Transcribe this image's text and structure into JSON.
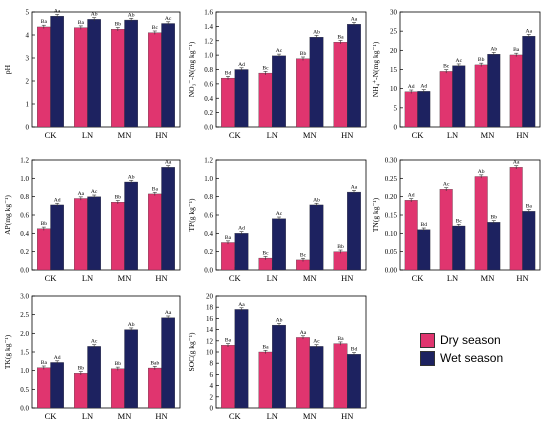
{
  "colors": {
    "dry": "#e0356f",
    "wet": "#1d2260",
    "axis": "#000000",
    "label_text": "#000000"
  },
  "legend": [
    {
      "label": "Dry season",
      "color": "#e0356f"
    },
    {
      "label": "Wet season",
      "color": "#1d2260"
    }
  ],
  "chart_data": [
    {
      "type": "bar",
      "ylabel": "pH",
      "categories": [
        "CK",
        "LN",
        "MN",
        "HN"
      ],
      "ylim": [
        0,
        5
      ],
      "yticks": [
        0,
        1,
        2,
        3,
        4,
        5
      ],
      "yticklabels": [
        "0",
        "1",
        "2",
        "3",
        "4",
        "5"
      ],
      "series": [
        {
          "name": "Dry season",
          "values": [
            4.35,
            4.32,
            4.25,
            4.1
          ],
          "labels": [
            "Ba",
            "Ba",
            "Bb",
            "Bc"
          ]
        },
        {
          "name": "Wet season",
          "values": [
            4.82,
            4.68,
            4.65,
            4.5
          ],
          "labels": [
            "Aa",
            "Ab",
            "Ab",
            "Ac"
          ]
        }
      ]
    },
    {
      "type": "bar",
      "ylabel": "NO₃⁻-N(mg kg⁻¹)",
      "categories": [
        "CK",
        "LN",
        "MN",
        "HN"
      ],
      "ylim": [
        0,
        1.6
      ],
      "yticks": [
        0,
        0.2,
        0.4,
        0.6,
        0.8,
        1.0,
        1.2,
        1.4,
        1.6
      ],
      "yticklabels": [
        "0.0",
        "0.2",
        "0.4",
        "0.6",
        "0.8",
        "1.0",
        "1.2",
        "1.4",
        "1.6"
      ],
      "series": [
        {
          "name": "Dry season",
          "values": [
            0.68,
            0.75,
            0.95,
            1.18
          ],
          "labels": [
            "Bd",
            "Bc",
            "Bb",
            "Ba"
          ]
        },
        {
          "name": "Wet season",
          "values": [
            0.8,
            0.99,
            1.25,
            1.43
          ],
          "labels": [
            "Ad",
            "Ac",
            "Ab",
            "Aa"
          ]
        }
      ]
    },
    {
      "type": "bar",
      "ylabel": "NH₄⁺-N(mg kg⁻¹)",
      "categories": [
        "CK",
        "LN",
        "MN",
        "HN"
      ],
      "ylim": [
        0,
        30
      ],
      "yticks": [
        0,
        5,
        10,
        15,
        20,
        25,
        30
      ],
      "yticklabels": [
        "0",
        "5",
        "10",
        "15",
        "20",
        "25",
        "30"
      ],
      "series": [
        {
          "name": "Dry season",
          "values": [
            9.2,
            14.5,
            16.2,
            18.8
          ],
          "labels": [
            "Ad",
            "Bc",
            "Bb",
            "Ba"
          ]
        },
        {
          "name": "Wet season",
          "values": [
            9.3,
            16.0,
            19.0,
            23.7
          ],
          "labels": [
            "Ad",
            "Ac",
            "Ab",
            "Aa"
          ]
        }
      ]
    },
    {
      "type": "bar",
      "ylabel": "AP(mg kg⁻¹)",
      "categories": [
        "CK",
        "LN",
        "MN",
        "HN"
      ],
      "ylim": [
        0,
        1.2
      ],
      "yticks": [
        0,
        0.2,
        0.4,
        0.6,
        0.8,
        1.0,
        1.2
      ],
      "yticklabels": [
        "0.0",
        "0.2",
        "0.4",
        "0.6",
        "0.8",
        "1.0",
        "1.2"
      ],
      "series": [
        {
          "name": "Dry season",
          "values": [
            0.45,
            0.78,
            0.74,
            0.83
          ],
          "labels": [
            "Bb",
            "Aa",
            "Bb",
            "Ba"
          ]
        },
        {
          "name": "Wet season",
          "values": [
            0.71,
            0.8,
            0.96,
            1.12
          ],
          "labels": [
            "Ad",
            "Ac",
            "Ab",
            "Aa"
          ]
        }
      ]
    },
    {
      "type": "bar",
      "ylabel": "TP(g kg⁻¹)",
      "categories": [
        "CK",
        "LN",
        "MN",
        "HN"
      ],
      "ylim": [
        0,
        1.2
      ],
      "yticks": [
        0,
        0.2,
        0.4,
        0.6,
        0.8,
        1.0,
        1.2
      ],
      "yticklabels": [
        "0.0",
        "0.2",
        "0.4",
        "0.6",
        "0.8",
        "1.0",
        "1.2"
      ],
      "series": [
        {
          "name": "Dry season",
          "values": [
            0.3,
            0.13,
            0.11,
            0.2
          ],
          "labels": [
            "Ba",
            "Bc",
            "Bc",
            "Bb"
          ]
        },
        {
          "name": "Wet season",
          "values": [
            0.4,
            0.56,
            0.71,
            0.85
          ],
          "labels": [
            "Ad",
            "Ac",
            "Ab",
            "Aa"
          ]
        }
      ]
    },
    {
      "type": "bar",
      "ylabel": "TN(g kg⁻¹)",
      "categories": [
        "CK",
        "LN",
        "MN",
        "HN"
      ],
      "ylim": [
        0,
        0.3
      ],
      "yticks": [
        0,
        0.05,
        0.1,
        0.15,
        0.2,
        0.25,
        0.3
      ],
      "yticklabels": [
        "0.00",
        "0.05",
        "0.10",
        "0.15",
        "0.20",
        "0.25",
        "0.30"
      ],
      "series": [
        {
          "name": "Dry season",
          "values": [
            0.19,
            0.22,
            0.255,
            0.28
          ],
          "labels": [
            "Ad",
            "Ac",
            "Ab",
            "Aa"
          ]
        },
        {
          "name": "Wet season",
          "values": [
            0.11,
            0.12,
            0.13,
            0.16
          ],
          "labels": [
            "Bd",
            "Bc",
            "Bb",
            "Ba"
          ]
        }
      ]
    },
    {
      "type": "bar",
      "ylabel": "TK(g kg⁻¹)",
      "categories": [
        "CK",
        "LN",
        "MN",
        "HN"
      ],
      "ylim": [
        0,
        3.0
      ],
      "yticks": [
        0,
        0.5,
        1.0,
        1.5,
        2.0,
        2.5,
        3.0
      ],
      "yticklabels": [
        "0.0",
        "0.5",
        "1.0",
        "1.5",
        "2.0",
        "2.5",
        "3.0"
      ],
      "series": [
        {
          "name": "Dry season",
          "values": [
            1.08,
            0.93,
            1.05,
            1.07
          ],
          "labels": [
            "Ba",
            "Bb",
            "Bb",
            "Bab"
          ]
        },
        {
          "name": "Wet season",
          "values": [
            1.22,
            1.65,
            2.1,
            2.42
          ],
          "labels": [
            "Ad",
            "Ac",
            "Ab",
            "Aa"
          ]
        }
      ]
    },
    {
      "type": "bar",
      "ylabel": "SOC(g kg⁻¹)",
      "categories": [
        "CK",
        "LN",
        "MN",
        "HN"
      ],
      "ylim": [
        0,
        20
      ],
      "yticks": [
        0,
        2,
        4,
        6,
        8,
        10,
        12,
        14,
        16,
        18,
        20
      ],
      "yticklabels": [
        "0",
        "2",
        "4",
        "6",
        "8",
        "10",
        "12",
        "14",
        "16",
        "18",
        "20"
      ],
      "series": [
        {
          "name": "Dry season",
          "values": [
            11.2,
            10.0,
            12.6,
            11.5
          ],
          "labels": [
            "Ba",
            "Ba",
            "Aa",
            "Ba"
          ]
        },
        {
          "name": "Wet season",
          "values": [
            17.6,
            14.8,
            11.0,
            9.6
          ],
          "labels": [
            "Aa",
            "Ab",
            "Ac",
            "Bd"
          ]
        }
      ]
    }
  ]
}
